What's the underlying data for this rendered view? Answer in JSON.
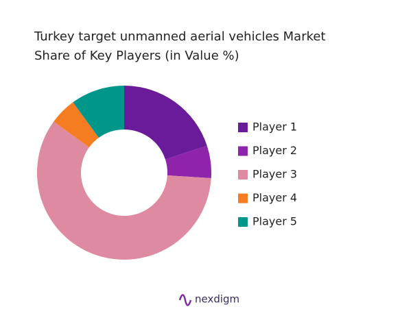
{
  "chart_data": {
    "type": "donut",
    "title": "Turkey target unmanned aerial vehicles Market Share of Key Players (in Value %)",
    "categories": [
      "Player 1",
      "Player 2",
      "Player 3",
      "Player 4",
      "Player 5"
    ],
    "values": [
      20,
      6,
      59,
      5,
      10
    ],
    "colors": [
      "#6a1b9a",
      "#8e24aa",
      "#de8aa0",
      "#f57c20",
      "#00968a"
    ],
    "legend": "right"
  },
  "brand": "nexdigm"
}
